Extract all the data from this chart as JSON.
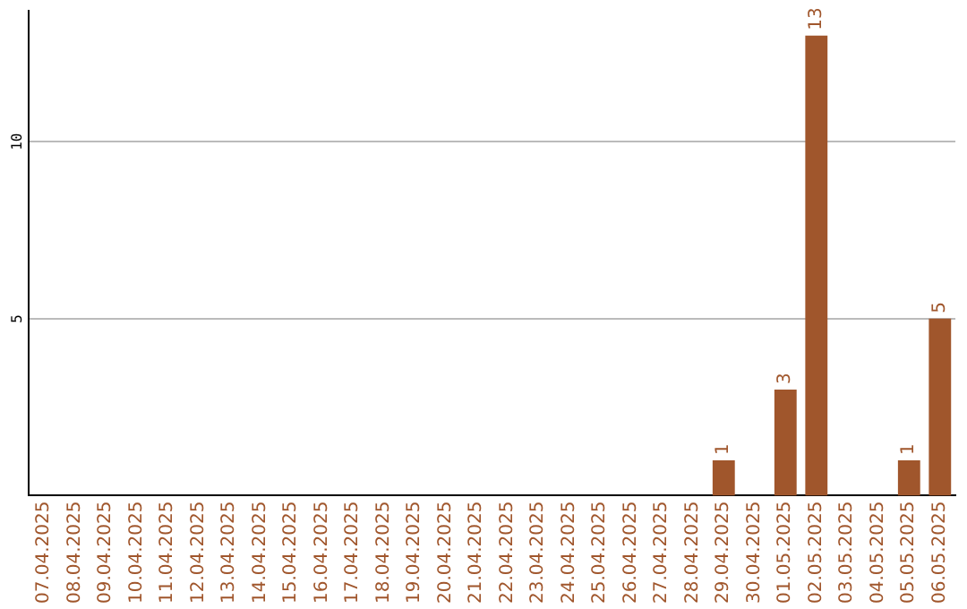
{
  "chart_data": {
    "type": "bar",
    "categories": [
      "07.04.2025",
      "08.04.2025",
      "09.04.2025",
      "10.04.2025",
      "11.04.2025",
      "12.04.2025",
      "13.04.2025",
      "14.04.2025",
      "15.04.2025",
      "16.04.2025",
      "17.04.2025",
      "18.04.2025",
      "19.04.2025",
      "20.04.2025",
      "21.04.2025",
      "22.04.2025",
      "23.04.2025",
      "24.04.2025",
      "25.04.2025",
      "26.04.2025",
      "27.04.2025",
      "28.04.2025",
      "29.04.2025",
      "30.04.2025",
      "01.05.2025",
      "02.05.2025",
      "03.05.2025",
      "04.05.2025",
      "05.05.2025",
      "06.05.2025"
    ],
    "values": [
      0,
      0,
      0,
      0,
      0,
      0,
      0,
      0,
      0,
      0,
      0,
      0,
      0,
      0,
      0,
      0,
      0,
      0,
      0,
      0,
      0,
      0,
      1,
      0,
      3,
      13,
      0,
      0,
      1,
      5
    ],
    "value_labels": [
      null,
      null,
      null,
      null,
      null,
      null,
      null,
      null,
      null,
      null,
      null,
      null,
      null,
      null,
      null,
      null,
      null,
      null,
      null,
      null,
      null,
      null,
      "1",
      null,
      "3",
      "13",
      null,
      null,
      "1",
      "5"
    ],
    "color": "#a0562c",
    "ylim": [
      0,
      13.7
    ],
    "yticks": [
      5,
      10
    ],
    "grid": "y",
    "legend": false
  }
}
